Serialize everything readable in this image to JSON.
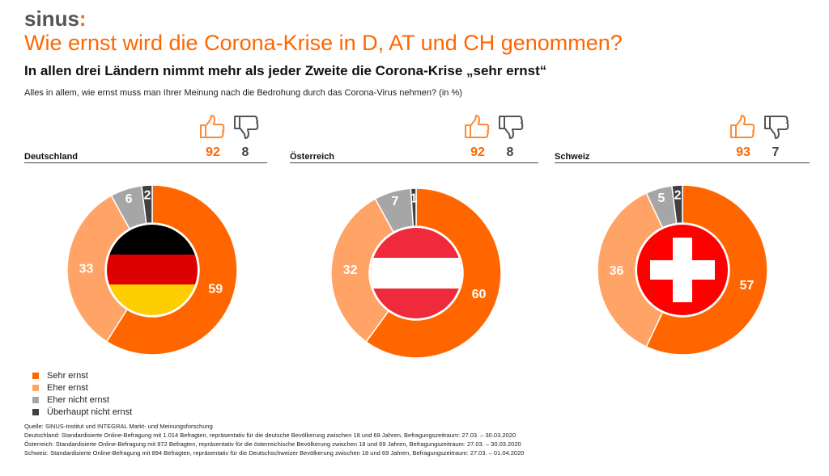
{
  "logo": {
    "text": "sinus",
    "mark": ":"
  },
  "title": "Wie ernst wird die Corona-Krise in D, AT und CH genommen?",
  "subtitle": "In allen drei Ländern nimmt mehr als jeder Zweite die Corona-Krise „sehr ernst“",
  "question": "Alles in allem, wie ernst muss man Ihrer Meinung nach die Bedrohung durch das Corona-Virus nehmen? (in %)",
  "colors": {
    "sehr": "#ff6600",
    "eher": "#ffa366",
    "eher_nicht": "#a6a6a6",
    "ueberhaupt": "#404040"
  },
  "chart_data": [
    {
      "type": "pie",
      "title": "Deutschland",
      "categories": [
        "Sehr ernst",
        "Eher ernst",
        "Eher nicht ernst",
        "Überhaupt nicht ernst"
      ],
      "values": [
        59,
        33,
        6,
        2
      ],
      "agree": "92",
      "disagree": "8"
    },
    {
      "type": "pie",
      "title": "Österreich",
      "categories": [
        "Sehr ernst",
        "Eher ernst",
        "Eher nicht ernst",
        "Überhaupt nicht ernst"
      ],
      "values": [
        60,
        32,
        7,
        1
      ],
      "agree": "92",
      "disagree": "8"
    },
    {
      "type": "pie",
      "title": "Schweiz",
      "categories": [
        "Sehr ernst",
        "Eher ernst",
        "Eher nicht ernst",
        "Überhaupt nicht ernst"
      ],
      "values": [
        57,
        36,
        5,
        2
      ],
      "agree": "93",
      "disagree": "7"
    }
  ],
  "legend": [
    "Sehr ernst",
    "Eher ernst",
    "Eher nicht ernst",
    "Überhaupt nicht ernst"
  ],
  "footnotes": [
    "Quelle: SINUS-Institut und INTEGRAL Markt- und Meinungsforschung",
    "Deutschland: Standardisierte Online-Befragung mit 1.014 Befragten, repräsentativ für die deutsche Bevölkerung zwischen 18 und 69 Jahren, Befragungszeitraum: 27.03. – 30.03.2020",
    "Österreich: Standardisierte Online-Befragung mit 972 Befragten, repräsentativ für die österreichische Bevölkerung zwischen 18 und 69 Jahren, Befragungszeitraum: 27.03. – 30.03.2020",
    "Schweiz: Standardisierte Online-Befragung mit 894 Befragten, repräsentativ für die Deutschschweizer Bevölkerung zwischen 18 und 69 Jahren, Befragungszeitraum: 27.03. – 01.04.2020"
  ]
}
